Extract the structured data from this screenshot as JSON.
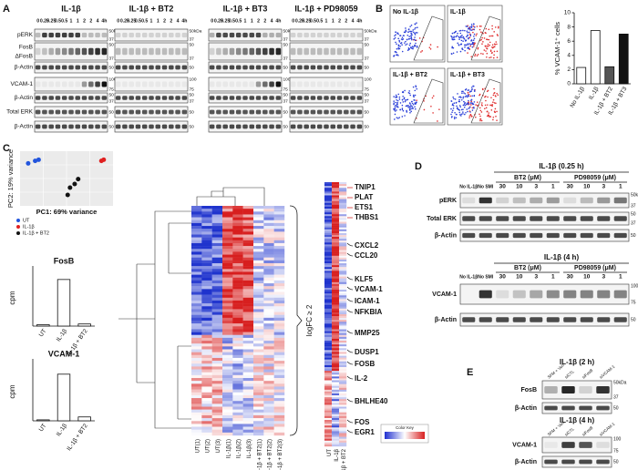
{
  "A": {
    "letter": "A",
    "groups": [
      "IL-1β",
      "IL-1β + BT2",
      "IL-1β + BT3",
      "IL-1β + PD98059"
    ],
    "lanes": [
      "0",
      "0.25",
      "0.25",
      "0.5",
      "0.5",
      "1",
      "1",
      "2",
      "2",
      "4",
      "4h"
    ],
    "rows": [
      {
        "label": "pERK",
        "markers": [
          "50kDa",
          "37"
        ]
      },
      {
        "label": "FosB",
        "label2": "ΔFosB",
        "markers": [
          "50",
          "37"
        ]
      },
      {
        "label": "β-Actin",
        "markers": [
          "50"
        ]
      },
      {
        "label": "VCAM-1",
        "markers": [
          "100",
          "75"
        ]
      },
      {
        "label": "β-Actin",
        "markers": [
          "50",
          "37"
        ]
      },
      {
        "label": "Total ERK",
        "markers": [
          "50"
        ]
      },
      {
        "label": "β-Actin",
        "markers": [
          "50"
        ]
      }
    ]
  },
  "B": {
    "letter": "B",
    "plots": [
      "No IL-1β",
      "IL-1β",
      "IL-1β + BT2",
      "IL-1β + BT3"
    ],
    "bar": {
      "ylabel": "% VCAM-1⁺ cells",
      "categories": [
        "No IL-1β",
        "IL-1β",
        "IL-1β + BT2",
        "IL-1β + BT3"
      ],
      "values": [
        2.3,
        7.5,
        2.4,
        7.0
      ],
      "colors": [
        "#ffffff",
        "#ffffff",
        "#555555",
        "#111111"
      ],
      "ylim": [
        0,
        10
      ],
      "yticks": [
        0,
        2,
        4,
        6,
        8,
        10
      ]
    }
  },
  "C": {
    "letter": "C",
    "pca": {
      "xlabel": "PC1: 69% variance",
      "ylabel": "PC2: 19% variance",
      "xlim": [
        -40,
        40
      ],
      "ylim": [
        -25,
        20
      ],
      "groups": [
        {
          "name": "UT",
          "color": "#2255dd",
          "x": [
            -33,
            -27,
            -24
          ],
          "y": [
            10,
            12,
            13
          ]
        },
        {
          "name": "IL-1β",
          "color": "#e02020",
          "x": [
            30,
            32
          ],
          "y": [
            12,
            13
          ]
        },
        {
          "name": "IL-1β + BT2",
          "color": "#111111",
          "x": [
            1,
            3,
            7,
            10
          ],
          "y": [
            -16,
            -10,
            -7,
            -3
          ]
        }
      ]
    },
    "bars": [
      {
        "title": "FosB",
        "ylabel": "cpm",
        "categories": [
          "UT",
          "IL-1β",
          "IL-1β + BT2"
        ],
        "values": [
          0.2,
          6.6,
          0.3
        ],
        "ylim": [
          0,
          8
        ]
      },
      {
        "title": "VCAM-1",
        "ylabel": "cpm",
        "categories": [
          "UT",
          "IL-1β",
          "IL-1β + BT2"
        ],
        "values": [
          0.1,
          4.8,
          0.4
        ],
        "ylim": [
          0,
          6
        ]
      }
    ],
    "heatmap": {
      "columns": [
        "UT(1)",
        "UT(2)",
        "UT(3)",
        "IL-1β(1)",
        "IL-1β(2)",
        "IL-1β(3)",
        "IL-1β + BT2(1)",
        "IL-1β + BT2(2)",
        "IL-1β + BT2(3)"
      ],
      "bracket": "logFC ≥ 2",
      "narrow_columns": [
        "UT",
        "IL-1β",
        "IL-1β + BT2"
      ],
      "genes_red": [
        "TNIP1",
        "PLAT",
        "ETS1",
        "THBS1"
      ],
      "genes": [
        "CXCL2",
        "CCL20",
        "KLF5",
        "VCAM-1",
        "ICAM-1",
        "NFKBIA",
        "MMP25",
        "DUSP1",
        "FOSB",
        "IL-2",
        "BHLHE40",
        "FOS",
        "EGR1"
      ],
      "color_key": "Color Key"
    }
  },
  "D": {
    "letter": "D",
    "lanes": [
      "No IL-1β",
      "No SMI",
      "30",
      "10",
      "3",
      "1",
      "30",
      "10",
      "3",
      "1"
    ],
    "treatments": [
      "BT2 (μM)",
      "PD98059 (μM)"
    ],
    "blots": [
      {
        "title": "IL-1β (0.25 h)",
        "rows": [
          {
            "label": "pERK",
            "markers": [
              "50kDa",
              "37"
            ]
          },
          {
            "label": "Total ERK",
            "markers": [
              "50",
              "37"
            ]
          },
          {
            "label": "β-Actin",
            "markers": [
              "50"
            ]
          }
        ]
      },
      {
        "title": "IL-1β (4 h)",
        "rows": [
          {
            "label": "VCAM-1",
            "markers": [
              "100",
              "75"
            ]
          },
          {
            "label": "β-Actin",
            "markers": [
              "50"
            ]
          }
        ]
      }
    ]
  },
  "E": {
    "letter": "E",
    "lanes": [
      "SFM + Veh",
      "siCTL",
      "siFosB",
      "siVCAM-1"
    ],
    "blots": [
      {
        "title": "IL-1β (2 h)",
        "rows": [
          {
            "label": "FosB",
            "markers": [
              "50kDa",
              "37"
            ]
          },
          {
            "label": "β-Actin",
            "markers": [
              "50"
            ]
          }
        ]
      },
      {
        "title": "IL-1β (4 h)",
        "rows": [
          {
            "label": "VCAM-1",
            "markers": [
              "100",
              "75"
            ]
          },
          {
            "label": "β-Actin",
            "markers": [
              "50"
            ]
          }
        ]
      }
    ]
  }
}
